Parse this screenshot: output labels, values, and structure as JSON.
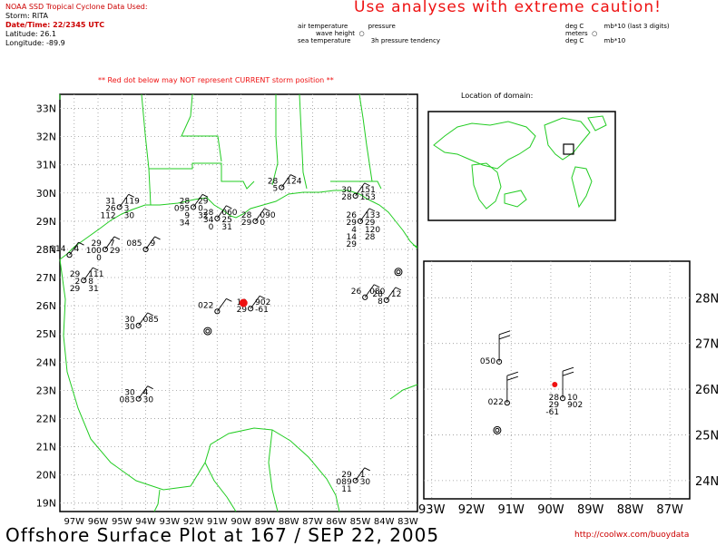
{
  "header": {
    "lines": [
      "NOAA SSD Tropical Cyclone Data Used:",
      "Storm: RITA",
      "Date/Time: 22/2345 UTC",
      "Latitude: 26.1",
      "Longitude: -89.9"
    ],
    "caution": "Use analyses with extreme caution!",
    "legend_mid": [
      "air temperature          pressure",
      "         wave height  ○",
      "sea temperature          3h pressure tendency"
    ],
    "legend_right": [
      "deg C          mb*10 (last 3 digits)",
      "meters  ○",
      "deg C          mb*10"
    ],
    "red_dot_note": "** Red dot below may NOT represent CURRENT storm position **",
    "location_title": "Location of domain:"
  },
  "main_map": {
    "lat_labels": [
      "33N",
      "32N",
      "31N",
      "30N",
      "29N",
      "28N",
      "27N",
      "26N",
      "25N",
      "24N",
      "23N",
      "22N",
      "21N",
      "20N",
      "19N"
    ],
    "lon_labels": [
      "97W",
      "96W",
      "95W",
      "94W",
      "93W",
      "92W",
      "91W",
      "90W",
      "89W",
      "88W",
      "87W",
      "86W",
      "85W",
      "84W",
      "83W"
    ],
    "storm": {
      "lat": 26.1,
      "lon": -89.9
    }
  },
  "zoom_map": {
    "lat_labels": [
      "28N",
      "27N",
      "26N",
      "25N",
      "24N"
    ],
    "lon_labels": [
      "93W",
      "92W",
      "91W",
      "90W",
      "89W",
      "88W",
      "87W"
    ],
    "stations": [
      {
        "text": [
          "050"
        ],
        "lat": 26.6,
        "lon": -91.3
      },
      {
        "text": [
          "022"
        ],
        "lat": 25.7,
        "lon": -91.1
      },
      {
        "text": [
          "28",
          "10",
          "29",
          "902",
          "-61"
        ],
        "lat": 25.8,
        "lon": -89.7
      }
    ]
  },
  "stations": [
    {
      "text": [
        "28",
        "124",
        "5"
      ],
      "lat": 30.2,
      "lon": -88.3
    },
    {
      "text": [
        "30",
        "151",
        "28",
        "153"
      ],
      "lat": 29.9,
      "lon": -85.2
    },
    {
      "text": [
        "31",
        "119",
        "26",
        "3",
        "112",
        "30"
      ],
      "lat": 29.5,
      "lon": -95.1
    },
    {
      "text": [
        "28",
        "29",
        "095",
        "0",
        "9",
        "32",
        "34"
      ],
      "lat": 29.5,
      "lon": -92.0
    },
    {
      "text": [
        "28",
        "060",
        "34",
        "25",
        "0",
        "31"
      ],
      "lat": 29.1,
      "lon": -91.0
    },
    {
      "text": [
        "28",
        "090",
        "29",
        "0"
      ],
      "lat": 29.0,
      "lon": -89.4
    },
    {
      "text": [
        "26",
        "133",
        "29",
        "29",
        "4",
        "120",
        "14",
        "28",
        "29"
      ],
      "lat": 29.0,
      "lon": -85.0
    },
    {
      "text": [
        "29",
        "7",
        "100",
        "29",
        "0"
      ],
      "lat": 28.0,
      "lon": -95.7
    },
    {
      "text": [
        "085",
        "9"
      ],
      "lat": 28.0,
      "lon": -94.0
    },
    {
      "text": [
        "114",
        "4"
      ],
      "lat": 27.8,
      "lon": -97.2
    },
    {
      "text": [
        "29",
        "111",
        "2",
        "8",
        "29",
        "31"
      ],
      "lat": 26.9,
      "lon": -96.6
    },
    {
      "text": [
        "26",
        "080"
      ],
      "lat": 26.3,
      "lon": -84.8
    },
    {
      "text": [
        "28",
        "12",
        "8"
      ],
      "lat": 26.2,
      "lon": -83.9
    },
    {
      "text": [
        "022"
      ],
      "lat": 25.8,
      "lon": -91.0
    },
    {
      "text": [
        "10",
        "902",
        "29",
        "-61"
      ],
      "lat": 25.9,
      "lon": -89.6
    },
    {
      "text": [
        "30",
        "085",
        "30"
      ],
      "lat": 25.3,
      "lon": -94.3
    },
    {
      "text": [
        "30",
        "4",
        "083",
        "30"
      ],
      "lat": 22.7,
      "lon": -94.3
    },
    {
      "text": [
        "29",
        "1",
        "089",
        "30",
        "11"
      ],
      "lat": 19.8,
      "lon": -85.2
    }
  ],
  "colors": {
    "coast": "#22cc22",
    "storm": "#ee1111",
    "grid": "#999999"
  },
  "footer": {
    "title": "Offshore Surface Plot at 167 / SEP 22, 2005",
    "url": "http://coolwx.com/buoydata"
  }
}
